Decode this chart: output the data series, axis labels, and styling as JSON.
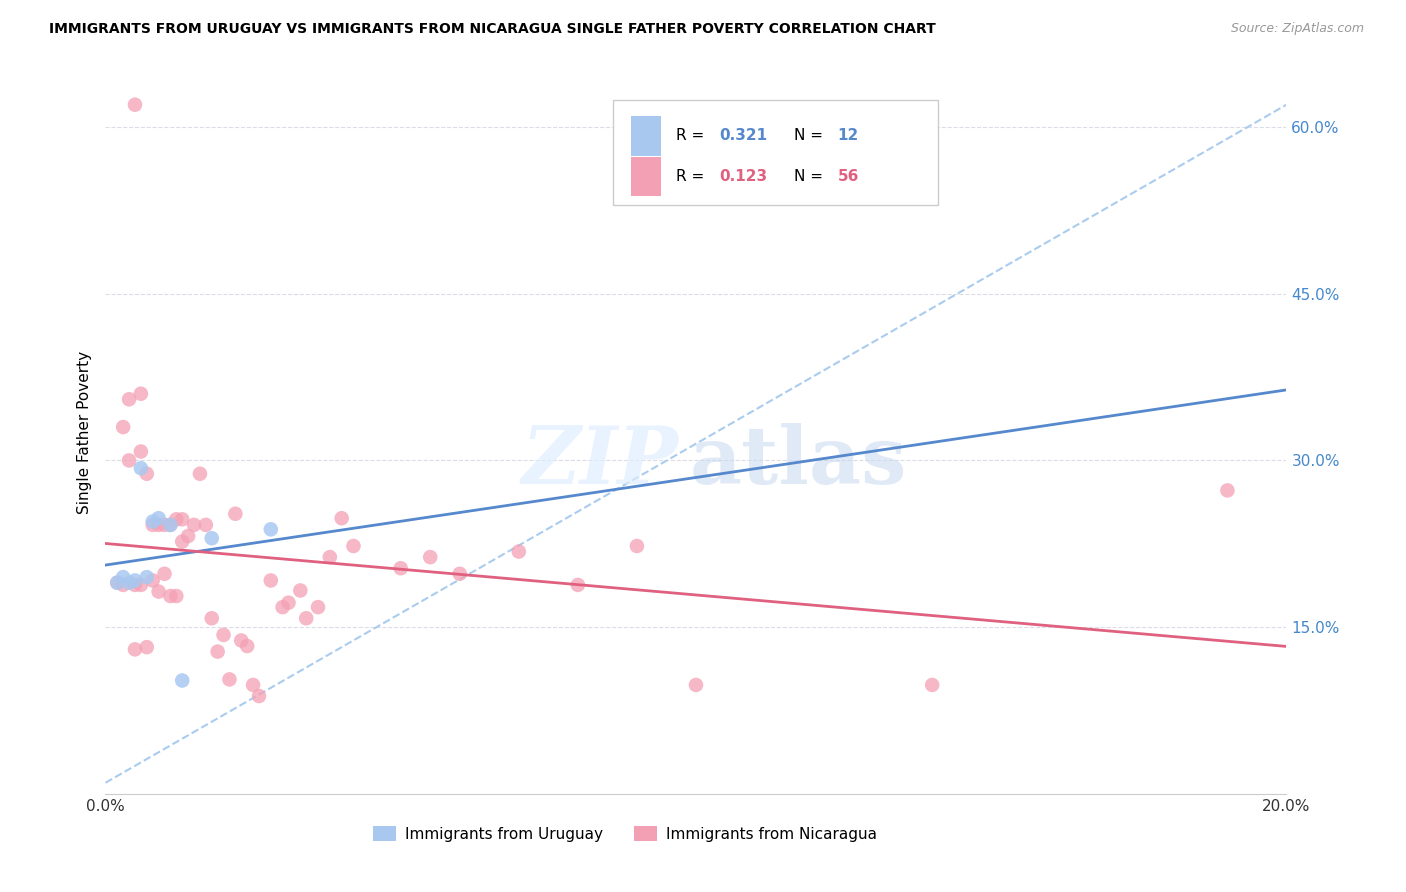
{
  "title": "IMMIGRANTS FROM URUGUAY VS IMMIGRANTS FROM NICARAGUA SINGLE FATHER POVERTY CORRELATION CHART",
  "source": "Source: ZipAtlas.com",
  "xlabel_label": "Immigrants from Uruguay",
  "xlabel_label2": "Immigrants from Nicaragua",
  "ylabel": "Single Father Poverty",
  "xlim": [
    0.0,
    0.2
  ],
  "ylim": [
    0.0,
    0.65
  ],
  "yticks": [
    0.15,
    0.3,
    0.45,
    0.6
  ],
  "right_ytick_labels": [
    "15.0%",
    "30.0%",
    "45.0%",
    "60.0%"
  ],
  "xticks": [
    0.0,
    0.05,
    0.1,
    0.15,
    0.2
  ],
  "xtick_labels": [
    "0.0%",
    "",
    "",
    "",
    "20.0%"
  ],
  "legend_R1": "0.321",
  "legend_N1": "12",
  "legend_R2": "0.123",
  "legend_N2": "56",
  "background_color": "#ffffff",
  "grid_color": "#dcdce8",
  "color_uruguay": "#a8c8f0",
  "color_nicaragua": "#f4a0b4",
  "trendline_uruguay_color": "#5588cc",
  "trendline_nicaragua_color": "#e06080",
  "dashed_line_color": "#aaccee",
  "axis_label_color": "#4488cc",
  "uruguay_x": [
    0.002,
    0.003,
    0.004,
    0.005,
    0.006,
    0.007,
    0.008,
    0.009,
    0.011,
    0.013,
    0.018,
    0.028
  ],
  "uruguay_y": [
    0.19,
    0.195,
    0.19,
    0.192,
    0.293,
    0.195,
    0.245,
    0.248,
    0.242,
    0.102,
    0.23,
    0.238
  ],
  "nicaragua_x": [
    0.002,
    0.003,
    0.003,
    0.004,
    0.004,
    0.005,
    0.005,
    0.006,
    0.006,
    0.006,
    0.007,
    0.007,
    0.008,
    0.008,
    0.009,
    0.009,
    0.01,
    0.01,
    0.011,
    0.011,
    0.012,
    0.012,
    0.013,
    0.013,
    0.014,
    0.015,
    0.016,
    0.017,
    0.018,
    0.019,
    0.02,
    0.021,
    0.022,
    0.023,
    0.024,
    0.025,
    0.026,
    0.028,
    0.03,
    0.031,
    0.033,
    0.034,
    0.036,
    0.038,
    0.04,
    0.042,
    0.05,
    0.055,
    0.06,
    0.07,
    0.08,
    0.09,
    0.1,
    0.14,
    0.19,
    0.005
  ],
  "nicaragua_y": [
    0.19,
    0.33,
    0.188,
    0.355,
    0.3,
    0.188,
    0.13,
    0.188,
    0.36,
    0.308,
    0.288,
    0.132,
    0.242,
    0.192,
    0.242,
    0.182,
    0.242,
    0.198,
    0.242,
    0.178,
    0.247,
    0.178,
    0.247,
    0.227,
    0.232,
    0.242,
    0.288,
    0.242,
    0.158,
    0.128,
    0.143,
    0.103,
    0.252,
    0.138,
    0.133,
    0.098,
    0.088,
    0.192,
    0.168,
    0.172,
    0.183,
    0.158,
    0.168,
    0.213,
    0.248,
    0.223,
    0.203,
    0.213,
    0.198,
    0.218,
    0.188,
    0.223,
    0.098,
    0.098,
    0.273,
    0.62
  ]
}
